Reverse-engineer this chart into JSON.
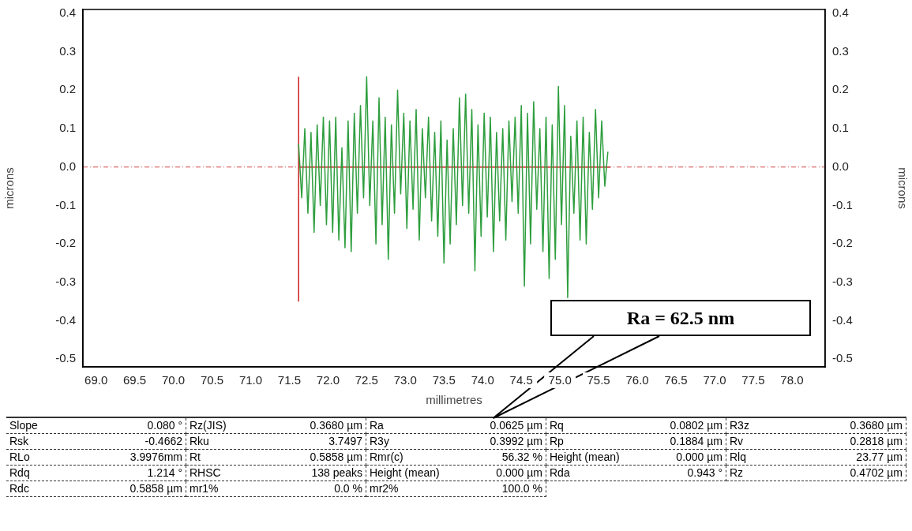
{
  "chart_data": {
    "type": "line",
    "xlabel": "millimetres",
    "ylabel": "microns",
    "y2label": "microns",
    "xlim": [
      68.83,
      78.43
    ],
    "ylim": [
      -0.52,
      0.41
    ],
    "y2lim": [
      -0.52,
      0.41
    ],
    "xticks": [
      {
        "value": 69,
        "label": "69.0"
      },
      69.5,
      {
        "value": 70,
        "label": "70.0"
      },
      70.5,
      {
        "value": 71,
        "label": "71.0"
      },
      71.5,
      {
        "value": 72,
        "label": "72.0"
      },
      72.5,
      {
        "value": 73,
        "label": "73.0"
      },
      73.5,
      {
        "value": 74,
        "label": "74.0"
      },
      74.5,
      {
        "value": 75,
        "label": "75.0"
      },
      75.5,
      {
        "value": 76,
        "label": "76.0"
      },
      76.5,
      {
        "value": 77,
        "label": "77.0"
      },
      77.5,
      {
        "value": 78,
        "label": "78.0"
      }
    ],
    "yticks": [
      0.4,
      0.3,
      0.2,
      0.1,
      {
        "value": 0,
        "label": "0.0"
      },
      -0.1,
      -0.2,
      -0.3,
      -0.4,
      -0.5
    ],
    "y2ticks": [
      0.4,
      0.3,
      0.2,
      0.1,
      {
        "value": 0,
        "label": "0.0"
      },
      -0.1,
      -0.2,
      -0.3,
      -0.4,
      -0.5
    ],
    "grid": false,
    "legend": false,
    "marker": "none",
    "line_style": "solid",
    "ref_lines": [
      {
        "axis": "y",
        "value": 0,
        "color": "#d04040",
        "line_style": "dashed"
      }
    ],
    "series": [
      {
        "color": "#2e9e3e",
        "x": [
          71.62,
          71.66,
          71.7,
          71.74,
          71.78,
          71.82,
          71.86,
          71.9,
          71.94,
          71.98,
          72.02,
          72.06,
          72.1,
          72.14,
          72.18,
          72.22,
          72.26,
          72.3,
          72.34,
          72.38,
          72.42,
          72.46,
          72.5,
          72.54,
          72.58,
          72.62,
          72.66,
          72.7,
          72.74,
          72.78,
          72.82,
          72.86,
          72.9,
          72.94,
          72.98,
          73.02,
          73.06,
          73.1,
          73.14,
          73.18,
          73.22,
          73.26,
          73.3,
          73.34,
          73.38,
          73.42,
          73.46,
          73.5,
          73.54,
          73.58,
          73.62,
          73.66,
          73.7,
          73.74,
          73.78,
          73.82,
          73.86,
          73.9,
          73.94,
          73.98,
          74.02,
          74.06,
          74.1,
          74.14,
          74.18,
          74.22,
          74.26,
          74.3,
          74.34,
          74.38,
          74.42,
          74.46,
          74.5,
          74.54,
          74.58,
          74.62,
          74.66,
          74.7,
          74.74,
          74.78,
          74.82,
          74.86,
          74.9,
          74.94,
          74.98,
          75.02,
          75.06,
          75.1,
          75.14,
          75.18,
          75.22,
          75.26,
          75.3,
          75.34,
          75.38,
          75.42,
          75.46,
          75.5,
          75.54,
          75.58,
          75.62
        ],
        "values": [
          0.06,
          -0.08,
          0.1,
          -0.12,
          0.09,
          -0.17,
          0.11,
          -0.1,
          0.13,
          -0.15,
          0.12,
          -0.17,
          0.13,
          -0.19,
          0.05,
          -0.21,
          0.12,
          -0.22,
          0.14,
          -0.12,
          0.16,
          -0.08,
          0.235,
          -0.1,
          0.12,
          -0.2,
          0.18,
          -0.15,
          0.13,
          -0.24,
          0.11,
          -0.12,
          0.2,
          -0.07,
          0.14,
          -0.16,
          0.12,
          -0.11,
          0.15,
          -0.19,
          0.1,
          -0.08,
          0.13,
          -0.14,
          0.09,
          -0.18,
          0.12,
          -0.25,
          0.07,
          -0.2,
          0.1,
          -0.15,
          0.18,
          -0.1,
          0.19,
          -0.12,
          0.15,
          -0.27,
          0.11,
          -0.18,
          0.14,
          -0.13,
          0.13,
          -0.22,
          0.09,
          -0.14,
          0.1,
          -0.19,
          0.12,
          -0.09,
          0.13,
          -0.12,
          0.16,
          -0.31,
          0.14,
          -0.2,
          0.17,
          -0.11,
          0.1,
          -0.22,
          0.13,
          -0.29,
          0.11,
          -0.24,
          0.21,
          -0.15,
          0.16,
          -0.34,
          0.08,
          -0.12,
          0.12,
          -0.19,
          0.13,
          -0.2,
          0.09,
          -0.11,
          0.15,
          -0.08,
          0.12,
          -0.05,
          0.04
        ]
      },
      {
        "color": "#cc2020",
        "x": [
          71.62,
          71.62
        ],
        "values": [
          -0.35,
          0.235
        ]
      },
      {
        "color": "#cc2020",
        "x": [
          71.62,
          75.65
        ],
        "values": [
          0,
          0
        ]
      }
    ],
    "annotations": [
      "Ra = 62.5 nm",
      "Slope\t0.080 °",
      "Rz(JIS)\t0.3680 µm",
      "Ra\t0.0625 µm",
      "Rq\t0.0802 µm",
      "R3z\t0.3680 µm",
      "Rsk\t-0.4662",
      "Rku\t3.7497",
      "R3y\t0.3992 µm",
      "Rp\t0.1884 µm",
      "Rv\t0.2818 µm",
      "RLo\t3.9976mm",
      "Rt\t0.5858 µm",
      "Rmr(c)\t56.32 %",
      "Height (mean)\t0.000 µm",
      "Rlq\t23.77 µm",
      "Rdq\t1.214 °",
      "RHSC\t138 peaks",
      "Height (mean)\t0.000 µm",
      "Rda\t0.943 °",
      "Rz\t0.4702 µm",
      "Rdc\t0.5858 µm",
      "mr1%\t0.0 %",
      "mr2%\t100.0 %"
    ]
  }
}
